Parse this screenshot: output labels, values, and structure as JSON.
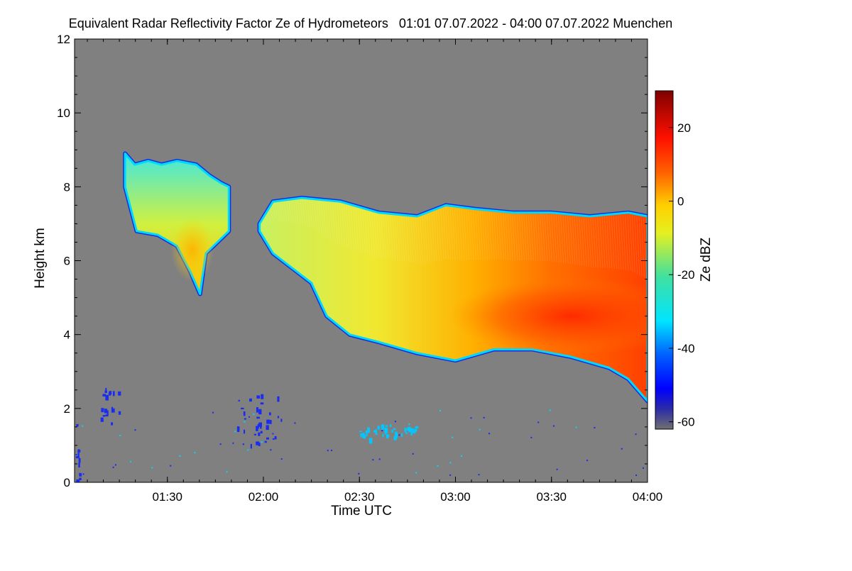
{
  "chart_data": {
    "type": "heatmap",
    "title": "Equivalent Radar Reflectivity Factor Ze of Hydrometeors   01:01 07.07.2022 - 04:00 07.07.2022 Muenchen",
    "xlabel": "Time UTC",
    "ylabel": "Height km",
    "xlim": [
      1.0167,
      4.0
    ],
    "ylim": [
      0,
      12
    ],
    "x_ticks": [
      {
        "value": 1.5,
        "label": "01:30"
      },
      {
        "value": 2.0,
        "label": "02:00"
      },
      {
        "value": 2.5,
        "label": "02:30"
      },
      {
        "value": 3.0,
        "label": "03:00"
      },
      {
        "value": 3.5,
        "label": "03:30"
      },
      {
        "value": 4.0,
        "label": "04:00"
      }
    ],
    "y_ticks": [
      {
        "value": 0,
        "label": "0"
      },
      {
        "value": 2,
        "label": "2"
      },
      {
        "value": 4,
        "label": "4"
      },
      {
        "value": 6,
        "label": "6"
      },
      {
        "value": 8,
        "label": "8"
      },
      {
        "value": 10,
        "label": "10"
      },
      {
        "value": 12,
        "label": "12"
      }
    ],
    "colorbar": {
      "label": "Ze dBZ",
      "range": [
        -62,
        30
      ],
      "ticks": [
        {
          "value": 20,
          "label": "20"
        },
        {
          "value": 0,
          "label": "0"
        },
        {
          "value": -20,
          "label": "-20"
        },
        {
          "value": -40,
          "label": "-40"
        },
        {
          "value": -60,
          "label": "-60"
        }
      ]
    },
    "background_color": "#808080",
    "echo_regions": [
      {
        "name": "upper-cloud-early",
        "time_start": 1.28,
        "time_end": 1.82,
        "top_km": [
          [
            1.28,
            8.9
          ],
          [
            1.33,
            8.6
          ],
          [
            1.4,
            8.7
          ],
          [
            1.47,
            8.6
          ],
          [
            1.55,
            8.7
          ],
          [
            1.65,
            8.6
          ],
          [
            1.72,
            8.3
          ],
          [
            1.78,
            8.1
          ],
          [
            1.82,
            8.0
          ]
        ],
        "base_km": [
          [
            1.28,
            8.0
          ],
          [
            1.34,
            6.8
          ],
          [
            1.45,
            6.7
          ],
          [
            1.55,
            6.4
          ],
          [
            1.62,
            5.7
          ],
          [
            1.67,
            5.1
          ],
          [
            1.7,
            6.2
          ],
          [
            1.74,
            6.4
          ],
          [
            1.82,
            6.8
          ]
        ],
        "core_time": 1.63,
        "core_height_km": 6.3,
        "core_dbz": 5
      },
      {
        "name": "main-precipitation-layer",
        "time_start": 1.98,
        "time_end": 4.0,
        "top_km": [
          [
            1.98,
            7.0
          ],
          [
            2.05,
            7.6
          ],
          [
            2.2,
            7.7
          ],
          [
            2.4,
            7.6
          ],
          [
            2.6,
            7.3
          ],
          [
            2.8,
            7.2
          ],
          [
            2.95,
            7.5
          ],
          [
            3.1,
            7.4
          ],
          [
            3.3,
            7.3
          ],
          [
            3.5,
            7.3
          ],
          [
            3.7,
            7.2
          ],
          [
            3.9,
            7.3
          ],
          [
            4.0,
            7.2
          ]
        ],
        "base_km": [
          [
            1.98,
            6.8
          ],
          [
            2.05,
            6.2
          ],
          [
            2.15,
            5.8
          ],
          [
            2.25,
            5.4
          ],
          [
            2.33,
            4.5
          ],
          [
            2.45,
            4.0
          ],
          [
            2.6,
            3.8
          ],
          [
            2.8,
            3.5
          ],
          [
            3.0,
            3.3
          ],
          [
            3.2,
            3.6
          ],
          [
            3.4,
            3.6
          ],
          [
            3.6,
            3.4
          ],
          [
            3.8,
            3.1
          ],
          [
            3.9,
            2.8
          ],
          [
            4.0,
            2.2
          ]
        ],
        "core_time": 3.6,
        "core_height_km": 4.5,
        "core_dbz": 15
      }
    ],
    "clutter_regions": [
      {
        "time_start": 1.02,
        "time_end": 1.05,
        "height_km": [
          0.0,
          1.6
        ],
        "dbz": -40
      },
      {
        "time_start": 1.15,
        "time_end": 1.25,
        "height_km": [
          1.6,
          2.6
        ],
        "dbz": -35
      },
      {
        "time_start": 1.85,
        "time_end": 2.1,
        "height_km": [
          1.0,
          2.4
        ],
        "dbz": -38
      },
      {
        "time_start": 2.5,
        "time_end": 2.8,
        "height_km": [
          1.2,
          1.6
        ],
        "dbz": -25
      }
    ]
  }
}
